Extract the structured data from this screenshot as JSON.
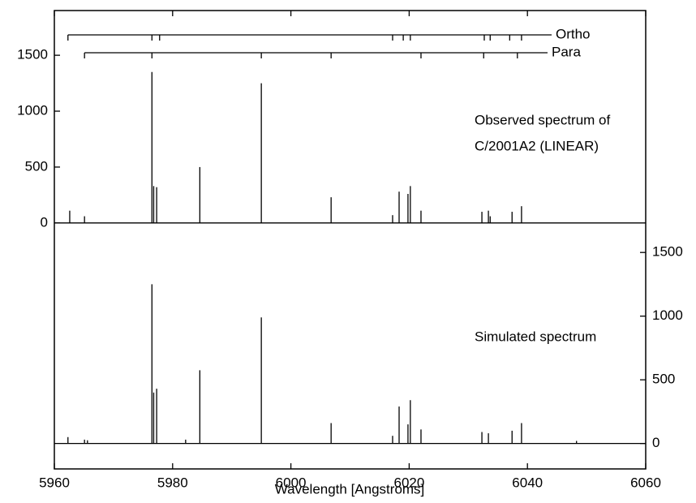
{
  "chart_data": {
    "type": "spectrum",
    "xlabel": "Wavelength [Angstroms]",
    "xlim": [
      5960,
      6060
    ],
    "xticks": [
      5960,
      5980,
      6000,
      6020,
      6040,
      6060
    ],
    "ylim": [
      -2200,
      1900
    ],
    "yticks": [
      0,
      500,
      1000,
      1500
    ],
    "y2lim": [
      -200,
      3400
    ],
    "y2ticks": [
      0,
      500,
      1000,
      1500
    ],
    "color": "#000000",
    "annotations": [
      "Observed spectrum of",
      "C/2001A2 (LINEAR)",
      "Simulated spectrum"
    ],
    "series": [
      {
        "x": [
          5962.6,
          5965.1,
          5976.5,
          5976.8,
          5977.3,
          5984.6,
          5995.0,
          6006.8,
          6017.2,
          6018.3,
          6019.8,
          6020.2,
          6022.0,
          6032.3,
          6033.4,
          6033.7,
          6037.4,
          6039.0
        ],
        "values": [
          110,
          60,
          1350,
          330,
          320,
          500,
          1250,
          230,
          70,
          280,
          260,
          330,
          110,
          100,
          110,
          60,
          100,
          150
        ]
      },
      {
        "axis": "y2",
        "x": [
          5962.3,
          5965.1,
          5965.6,
          5976.5,
          5976.8,
          5977.3,
          5982.2,
          5984.6,
          5995.0,
          6006.8,
          6017.2,
          6018.3,
          6019.8,
          6020.2,
          6022.0,
          6032.3,
          6033.4,
          6037.4,
          6039.0,
          6048.3
        ],
        "values": [
          50,
          30,
          25,
          1250,
          400,
          430,
          30,
          575,
          990,
          160,
          60,
          290,
          150,
          340,
          110,
          90,
          80,
          100,
          160,
          20
        ]
      }
    ],
    "line_markers": [
      {
        "label": "Ortho",
        "x": [
          5962.3,
          5976.5,
          5977.8,
          6017.2,
          6019.0,
          6020.2,
          6032.7,
          6033.7,
          6037.0,
          6039.0
        ]
      },
      {
        "label": "Para",
        "x": [
          5965.1,
          5976.5,
          5995.0,
          6006.8,
          6022.0,
          6032.6,
          6038.3
        ]
      }
    ]
  }
}
